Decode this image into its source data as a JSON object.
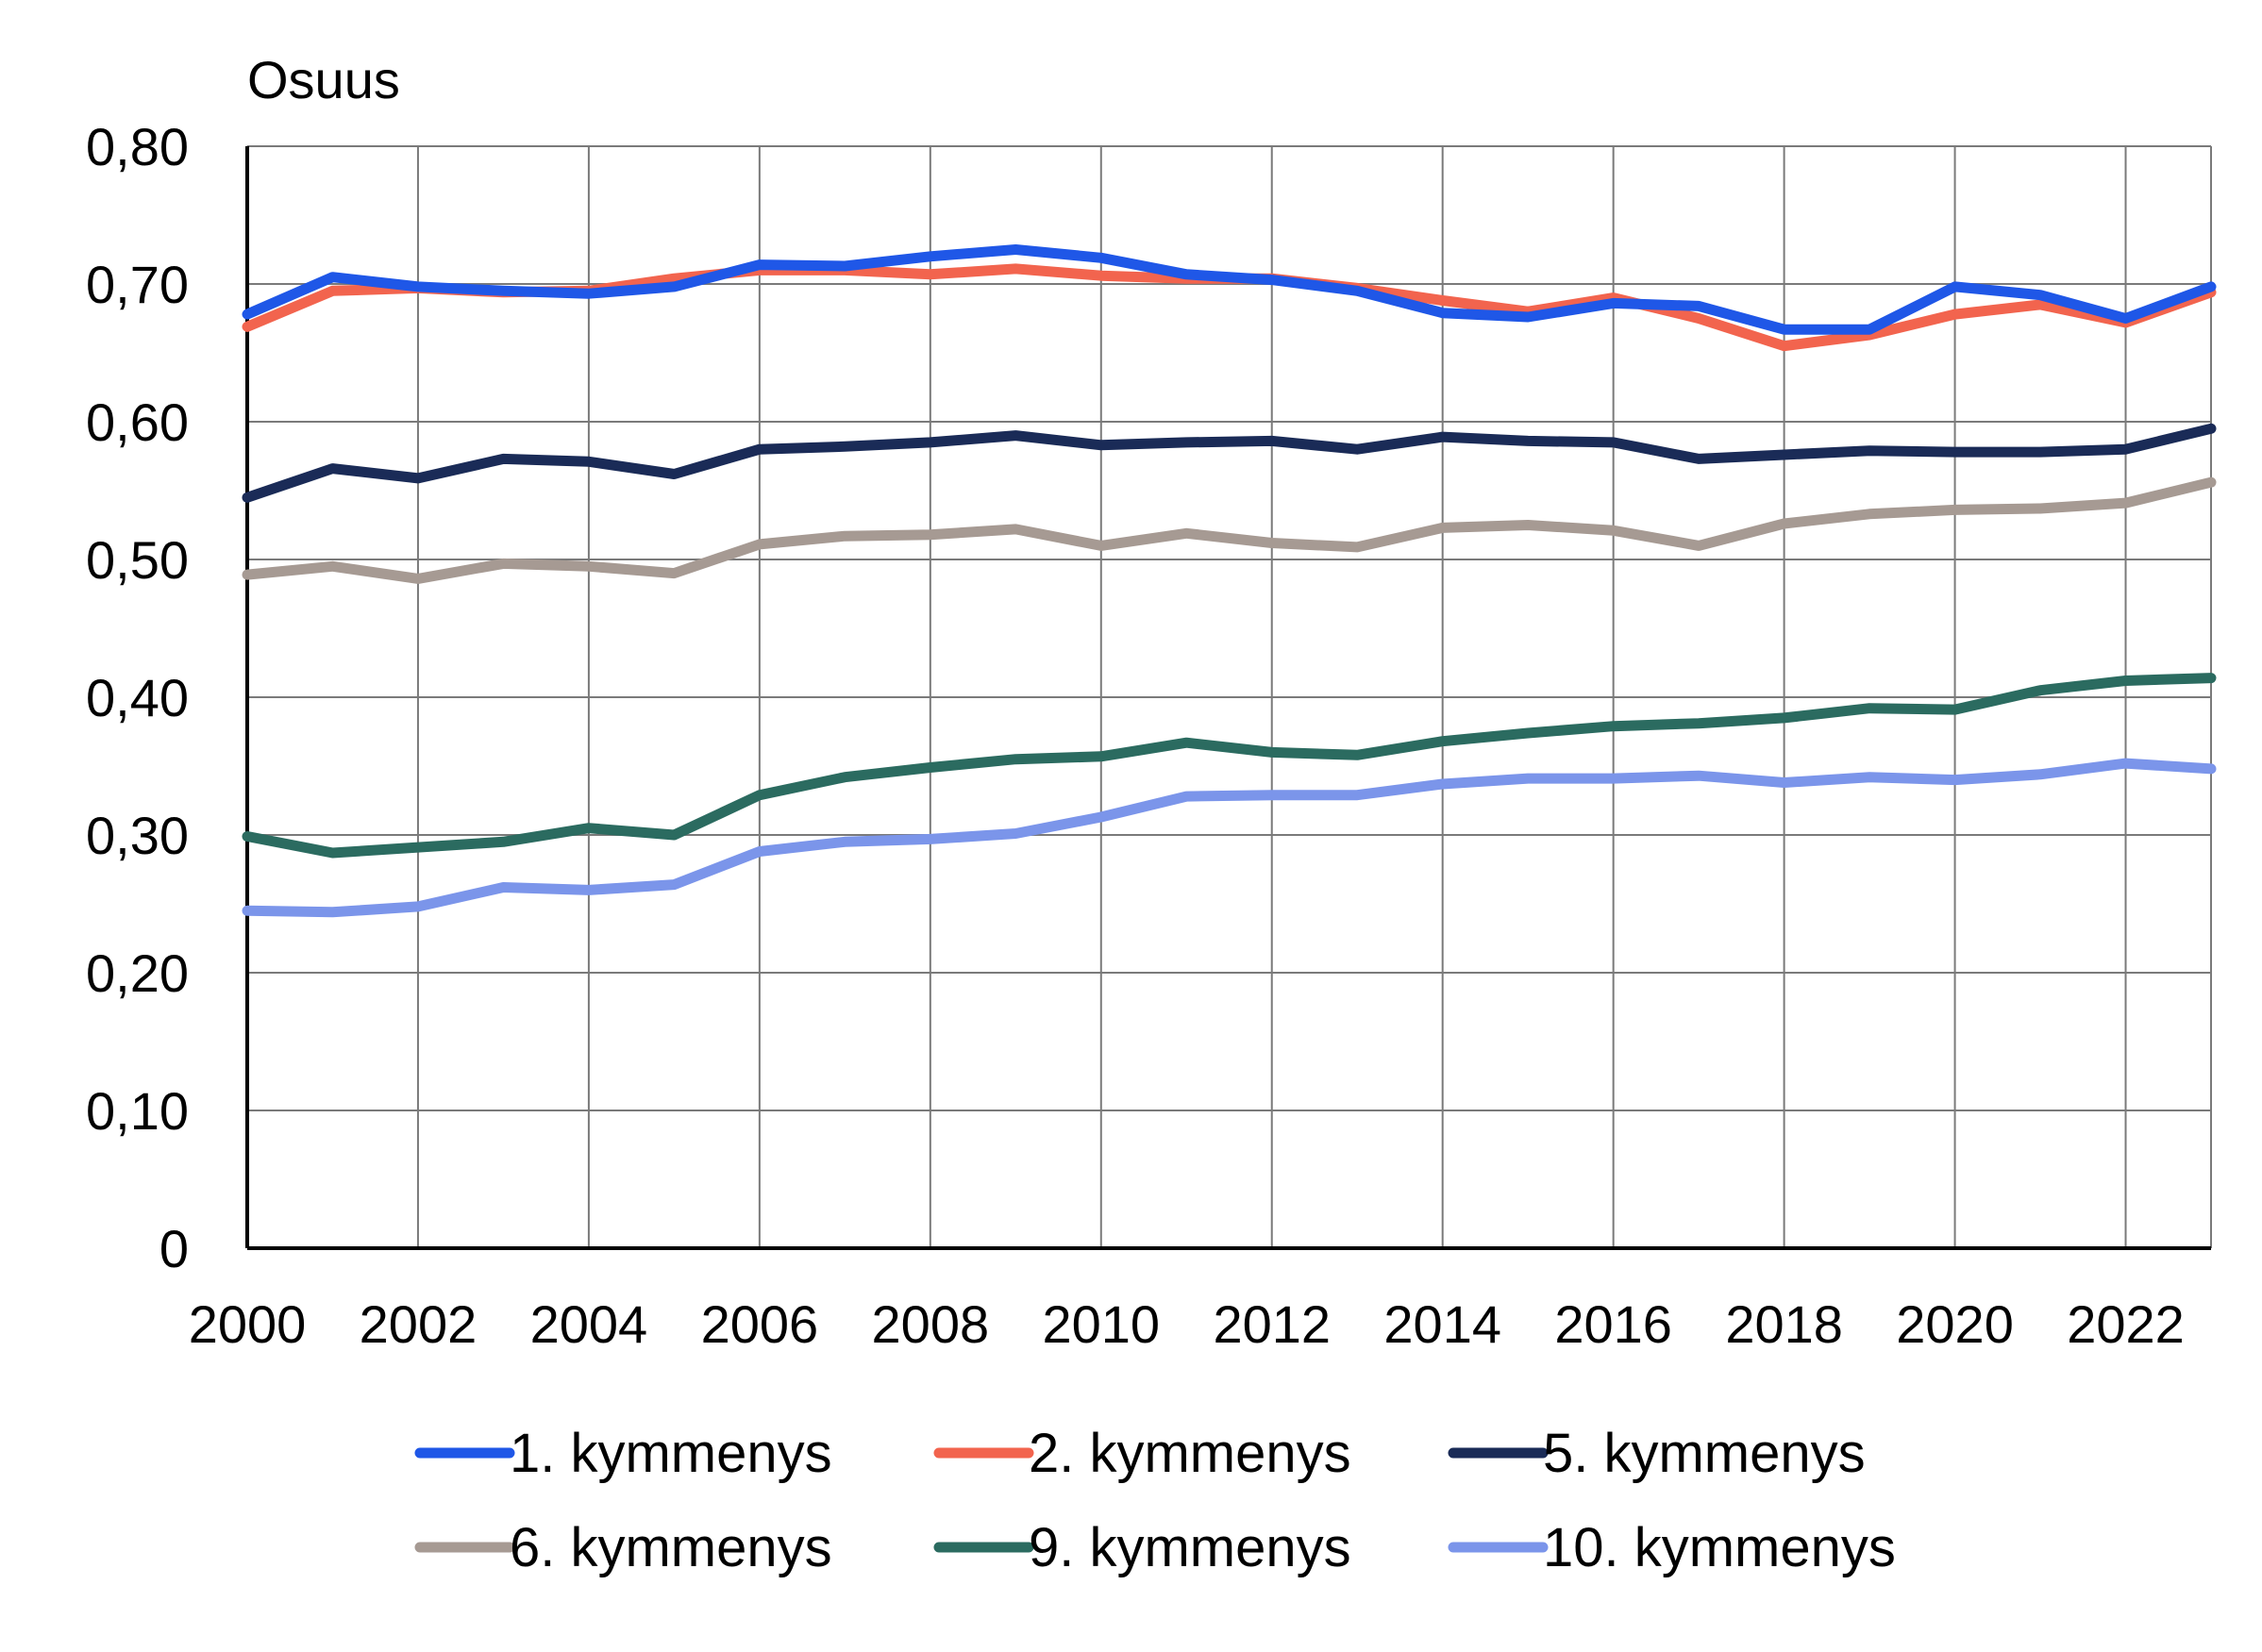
{
  "chart_data": {
    "type": "line",
    "title": "",
    "ylabel": "Osuus",
    "xlabel": "",
    "ylim": [
      0,
      0.8
    ],
    "xlim": [
      2000,
      2023
    ],
    "y_ticks": [
      "0",
      "0,10",
      "0,20",
      "0,30",
      "0,40",
      "0,50",
      "0,60",
      "0,70",
      "0,80"
    ],
    "x_ticks": [
      "2000",
      "2002",
      "2004",
      "2006",
      "2008",
      "2010",
      "2012",
      "2014",
      "2016",
      "2018",
      "2020",
      "2022"
    ],
    "grid": true,
    "legend_position": "bottom",
    "x": [
      2000,
      2001,
      2002,
      2003,
      2004,
      2005,
      2006,
      2007,
      2008,
      2009,
      2010,
      2011,
      2012,
      2013,
      2014,
      2015,
      2016,
      2017,
      2018,
      2019,
      2020,
      2021,
      2022,
      2023
    ],
    "series": [
      {
        "name": "1. kymmenys",
        "color": "#1f57e7",
        "values": [
          0.678,
          0.705,
          0.698,
          0.695,
          0.693,
          0.698,
          0.714,
          0.713,
          0.72,
          0.725,
          0.719,
          0.707,
          0.703,
          0.695,
          0.679,
          0.676,
          0.686,
          0.684,
          0.667,
          0.667,
          0.698,
          0.692,
          0.675,
          0.698
        ]
      },
      {
        "name": "2. kymmenys",
        "color": "#f2644e",
        "values": [
          0.669,
          0.695,
          0.697,
          0.694,
          0.695,
          0.704,
          0.71,
          0.71,
          0.707,
          0.711,
          0.706,
          0.704,
          0.704,
          0.697,
          0.688,
          0.68,
          0.69,
          0.675,
          0.655,
          0.663,
          0.678,
          0.685,
          0.672,
          0.694
        ]
      },
      {
        "name": "5. kymmenys",
        "color": "#1a2b57",
        "values": [
          0.545,
          0.566,
          0.559,
          0.573,
          0.571,
          0.562,
          0.58,
          0.582,
          0.585,
          0.59,
          0.583,
          0.585,
          0.586,
          0.58,
          0.589,
          0.586,
          0.585,
          0.573,
          0.576,
          0.579,
          0.578,
          0.578,
          0.58,
          0.595
        ]
      },
      {
        "name": "6. kymmenys",
        "color": "#a69a93",
        "values": [
          0.489,
          0.495,
          0.486,
          0.497,
          0.495,
          0.49,
          0.511,
          0.517,
          0.518,
          0.522,
          0.51,
          0.519,
          0.512,
          0.509,
          0.523,
          0.525,
          0.521,
          0.51,
          0.526,
          0.533,
          0.536,
          0.537,
          0.541,
          0.556
        ]
      },
      {
        "name": "9. kymmenys",
        "color": "#2b6b60",
        "values": [
          0.299,
          0.287,
          0.291,
          0.295,
          0.305,
          0.3,
          0.329,
          0.342,
          0.349,
          0.355,
          0.357,
          0.367,
          0.36,
          0.358,
          0.368,
          0.374,
          0.379,
          0.381,
          0.385,
          0.392,
          0.391,
          0.405,
          0.412,
          0.414
        ]
      },
      {
        "name": "10. kymmenys",
        "color": "#7b95ea",
        "values": [
          0.245,
          0.244,
          0.248,
          0.262,
          0.26,
          0.264,
          0.288,
          0.295,
          0.297,
          0.301,
          0.313,
          0.328,
          0.329,
          0.329,
          0.337,
          0.341,
          0.341,
          0.343,
          0.338,
          0.342,
          0.34,
          0.344,
          0.352,
          0.348
        ]
      }
    ]
  }
}
